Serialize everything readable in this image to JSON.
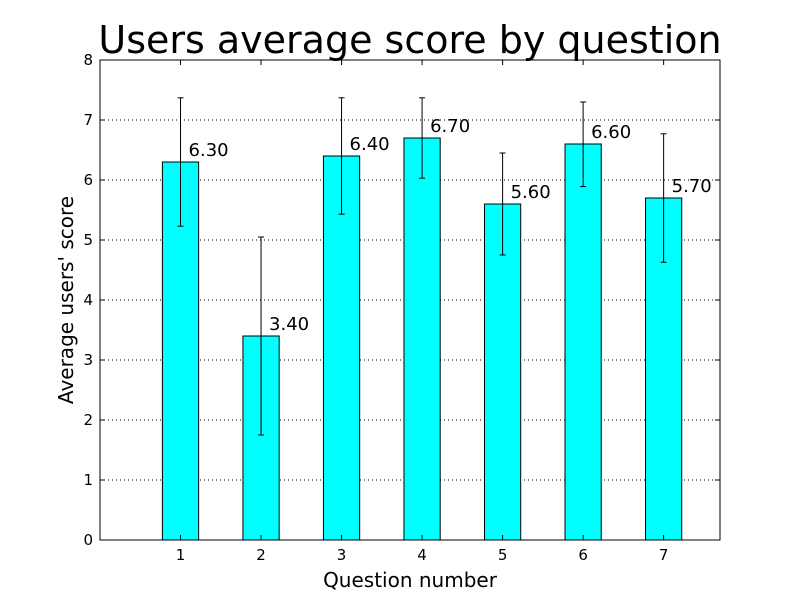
{
  "chart_data": {
    "type": "bar",
    "title": "Users average score by question",
    "xlabel": "Question number",
    "ylabel": "Average users' score",
    "categories": [
      "1",
      "2",
      "3",
      "4",
      "5",
      "6",
      "7"
    ],
    "values": [
      6.3,
      3.4,
      6.4,
      6.7,
      5.6,
      6.6,
      5.7
    ],
    "value_labels": [
      "6.30",
      "3.40",
      "6.40",
      "6.70",
      "5.60",
      "6.60",
      "5.70"
    ],
    "error_low": [
      5.23,
      1.75,
      5.43,
      6.03,
      4.75,
      5.89,
      4.63
    ],
    "error_high": [
      7.37,
      5.05,
      7.37,
      7.37,
      6.45,
      7.3,
      6.77
    ],
    "ylim": [
      0,
      8
    ],
    "yticks": [
      0,
      1,
      2,
      3,
      4,
      5,
      6,
      7,
      8
    ],
    "xlim": [
      0,
      7.7
    ],
    "grid": "horizontal dotted",
    "bar_color": "#00ffff",
    "edge_color": "#000000"
  }
}
